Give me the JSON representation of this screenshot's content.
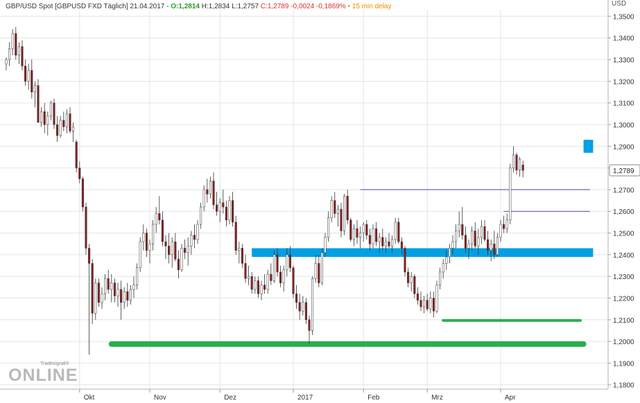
{
  "header": {
    "title": "GBP/USD Spot [GBPUSD FXD Täglich] 21.04.2017",
    "open": "O:1,2814",
    "high": "H:1,2834",
    "low": "L:1,2757",
    "close": "C:1,2789 -0,0024 -0,1869%",
    "delay": "15 min delay"
  },
  "colors": {
    "up": "#ffffff",
    "down": "#8b1f1f",
    "blue_zone": "#00a0e3",
    "green_line": "#27b04a",
    "resistance_line": "#4a4aa8",
    "open_text": "#2a9a2a",
    "close_text": "#d83030",
    "delay_text": "#f08c00"
  },
  "watermark": {
    "small": "Tradesignal®",
    "big": "ONLINE"
  },
  "chart_data": {
    "type": "candlestick",
    "currency": "USD",
    "last_value": "1,2789",
    "ylim": [
      1.178,
      1.353
    ],
    "yticks": [
      "1,1800",
      "1,1900",
      "1,2000",
      "1,2100",
      "1,2200",
      "1,2300",
      "1,2400",
      "1,2500",
      "1,2600",
      "1,2700",
      "1,2800",
      "1,2900",
      "1,3000",
      "1,3100",
      "1,3200",
      "1,3300",
      "1,3400",
      "1,3500"
    ],
    "xticks": [
      "Okt",
      "Nov",
      "Dez",
      "2017",
      "Feb",
      "Mrz",
      "Apr"
    ],
    "xtick_index": [
      23,
      45,
      67,
      90,
      112,
      132,
      155
    ],
    "grid": true,
    "candles": [
      [
        1.328,
        1.331,
        1.325,
        1.33
      ],
      [
        1.33,
        1.338,
        1.327,
        1.335
      ],
      [
        1.335,
        1.344,
        1.332,
        1.342
      ],
      [
        1.342,
        1.345,
        1.33,
        1.332
      ],
      [
        1.332,
        1.338,
        1.328,
        1.336
      ],
      [
        1.336,
        1.339,
        1.325,
        1.327
      ],
      [
        1.327,
        1.33,
        1.318,
        1.32
      ],
      [
        1.32,
        1.328,
        1.316,
        1.325
      ],
      [
        1.325,
        1.33,
        1.312,
        1.315
      ],
      [
        1.315,
        1.32,
        1.308,
        1.318
      ],
      [
        1.318,
        1.321,
        1.301,
        1.301
      ],
      [
        1.301,
        1.308,
        1.299,
        1.306
      ],
      [
        1.306,
        1.31,
        1.296,
        1.3
      ],
      [
        1.3,
        1.306,
        1.295,
        1.304
      ],
      [
        1.304,
        1.311,
        1.302,
        1.31
      ],
      [
        1.31,
        1.312,
        1.298,
        1.3
      ],
      [
        1.3,
        1.304,
        1.292,
        1.295
      ],
      [
        1.295,
        1.304,
        1.294,
        1.302
      ],
      [
        1.302,
        1.306,
        1.297,
        1.299
      ],
      [
        1.299,
        1.307,
        1.296,
        1.305
      ],
      [
        1.305,
        1.308,
        1.296,
        1.297
      ],
      [
        1.297,
        1.301,
        1.292,
        1.299
      ],
      [
        1.292,
        1.293,
        1.278,
        1.28
      ],
      [
        1.28,
        1.283,
        1.273,
        1.275
      ],
      [
        1.275,
        1.276,
        1.26,
        1.262
      ],
      [
        1.262,
        1.264,
        1.24,
        1.243
      ],
      [
        1.243,
        1.245,
        1.194,
        1.236
      ],
      [
        1.236,
        1.238,
        1.208,
        1.213
      ],
      [
        1.213,
        1.229,
        1.21,
        1.227
      ],
      [
        1.227,
        1.229,
        1.216,
        1.218
      ],
      [
        1.218,
        1.225,
        1.215,
        1.222
      ],
      [
        1.222,
        1.231,
        1.219,
        1.229
      ],
      [
        1.229,
        1.233,
        1.222,
        1.224
      ],
      [
        1.224,
        1.231,
        1.218,
        1.227
      ],
      [
        1.227,
        1.229,
        1.218,
        1.221
      ],
      [
        1.221,
        1.227,
        1.216,
        1.224
      ],
      [
        1.224,
        1.228,
        1.21,
        1.218
      ],
      [
        1.218,
        1.225,
        1.215,
        1.223
      ],
      [
        1.223,
        1.227,
        1.216,
        1.219
      ],
      [
        1.219,
        1.226,
        1.217,
        1.224
      ],
      [
        1.224,
        1.23,
        1.22,
        1.226
      ],
      [
        1.226,
        1.236,
        1.224,
        1.234
      ],
      [
        1.234,
        1.248,
        1.232,
        1.246
      ],
      [
        1.246,
        1.254,
        1.242,
        1.25
      ],
      [
        1.25,
        1.252,
        1.239,
        1.242
      ],
      [
        1.242,
        1.247,
        1.236,
        1.245
      ],
      [
        1.245,
        1.256,
        1.242,
        1.254
      ],
      [
        1.254,
        1.262,
        1.25,
        1.259
      ],
      [
        1.259,
        1.267,
        1.254,
        1.256
      ],
      [
        1.256,
        1.26,
        1.244,
        1.246
      ],
      [
        1.246,
        1.249,
        1.238,
        1.244
      ],
      [
        1.244,
        1.25,
        1.236,
        1.24
      ],
      [
        1.24,
        1.248,
        1.234,
        1.246
      ],
      [
        1.246,
        1.25,
        1.237,
        1.238
      ],
      [
        1.238,
        1.242,
        1.229,
        1.233
      ],
      [
        1.233,
        1.245,
        1.232,
        1.243
      ],
      [
        1.243,
        1.247,
        1.238,
        1.241
      ],
      [
        1.241,
        1.248,
        1.235,
        1.244
      ],
      [
        1.244,
        1.251,
        1.24,
        1.249
      ],
      [
        1.249,
        1.254,
        1.243,
        1.247
      ],
      [
        1.247,
        1.256,
        1.245,
        1.254
      ],
      [
        1.254,
        1.264,
        1.252,
        1.262
      ],
      [
        1.262,
        1.272,
        1.26,
        1.27
      ],
      [
        1.27,
        1.275,
        1.264,
        1.268
      ],
      [
        1.268,
        1.276,
        1.266,
        1.274
      ],
      [
        1.274,
        1.278,
        1.261,
        1.263
      ],
      [
        1.263,
        1.269,
        1.258,
        1.26
      ],
      [
        1.26,
        1.266,
        1.255,
        1.264
      ],
      [
        1.264,
        1.27,
        1.259,
        1.262
      ],
      [
        1.262,
        1.265,
        1.253,
        1.256
      ],
      [
        1.256,
        1.267,
        1.254,
        1.265
      ],
      [
        1.265,
        1.269,
        1.253,
        1.255
      ],
      [
        1.255,
        1.258,
        1.24,
        1.242
      ],
      [
        1.242,
        1.246,
        1.236,
        1.243
      ],
      [
        1.243,
        1.245,
        1.234,
        1.236
      ],
      [
        1.236,
        1.24,
        1.227,
        1.229
      ],
      [
        1.229,
        1.235,
        1.226,
        1.23
      ],
      [
        1.23,
        1.232,
        1.222,
        1.224
      ],
      [
        1.224,
        1.23,
        1.222,
        1.228
      ],
      [
        1.228,
        1.23,
        1.22,
        1.222
      ],
      [
        1.222,
        1.228,
        1.219,
        1.226
      ],
      [
        1.226,
        1.231,
        1.222,
        1.224
      ],
      [
        1.224,
        1.233,
        1.222,
        1.231
      ],
      [
        1.231,
        1.236,
        1.226,
        1.228
      ],
      [
        1.228,
        1.242,
        1.227,
        1.24
      ],
      [
        1.24,
        1.243,
        1.23,
        1.232
      ],
      [
        1.232,
        1.235,
        1.225,
        1.227
      ],
      [
        1.227,
        1.235,
        1.223,
        1.233
      ],
      [
        1.233,
        1.243,
        1.23,
        1.24
      ],
      [
        1.24,
        1.244,
        1.232,
        1.234
      ],
      [
        1.234,
        1.235,
        1.22,
        1.222
      ],
      [
        1.222,
        1.226,
        1.215,
        1.218
      ],
      [
        1.218,
        1.222,
        1.21,
        1.214
      ],
      [
        1.214,
        1.221,
        1.212,
        1.218
      ],
      [
        1.218,
        1.22,
        1.208,
        1.21
      ],
      [
        1.21,
        1.212,
        1.199,
        1.205
      ],
      [
        1.205,
        1.23,
        1.203,
        1.229
      ],
      [
        1.229,
        1.24,
        1.227,
        1.236
      ],
      [
        1.236,
        1.24,
        1.225,
        1.227
      ],
      [
        1.227,
        1.243,
        1.226,
        1.241
      ],
      [
        1.241,
        1.25,
        1.239,
        1.248
      ],
      [
        1.248,
        1.26,
        1.246,
        1.257
      ],
      [
        1.257,
        1.267,
        1.255,
        1.265
      ],
      [
        1.265,
        1.269,
        1.257,
        1.259
      ],
      [
        1.259,
        1.263,
        1.253,
        1.261
      ],
      [
        1.261,
        1.264,
        1.248,
        1.251
      ],
      [
        1.251,
        1.268,
        1.249,
        1.267
      ],
      [
        1.267,
        1.27,
        1.254,
        1.256
      ],
      [
        1.256,
        1.257,
        1.246,
        1.247
      ],
      [
        1.247,
        1.254,
        1.244,
        1.252
      ],
      [
        1.252,
        1.256,
        1.245,
        1.248
      ],
      [
        1.248,
        1.253,
        1.243,
        1.25
      ],
      [
        1.25,
        1.255,
        1.246,
        1.254
      ],
      [
        1.254,
        1.256,
        1.247,
        1.249
      ],
      [
        1.249,
        1.252,
        1.242,
        1.245
      ],
      [
        1.245,
        1.254,
        1.243,
        1.252
      ],
      [
        1.252,
        1.255,
        1.244,
        1.246
      ],
      [
        1.246,
        1.25,
        1.241,
        1.248
      ],
      [
        1.248,
        1.252,
        1.242,
        1.244
      ],
      [
        1.244,
        1.248,
        1.241,
        1.246
      ],
      [
        1.246,
        1.25,
        1.243,
        1.244
      ],
      [
        1.244,
        1.249,
        1.241,
        1.247
      ],
      [
        1.247,
        1.257,
        1.245,
        1.255
      ],
      [
        1.255,
        1.257,
        1.245,
        1.246
      ],
      [
        1.246,
        1.248,
        1.24,
        1.243
      ],
      [
        1.243,
        1.244,
        1.23,
        1.232
      ],
      [
        1.232,
        1.234,
        1.225,
        1.227
      ],
      [
        1.227,
        1.232,
        1.223,
        1.23
      ],
      [
        1.23,
        1.231,
        1.22,
        1.222
      ],
      [
        1.222,
        1.225,
        1.217,
        1.219
      ],
      [
        1.219,
        1.223,
        1.214,
        1.216
      ],
      [
        1.216,
        1.221,
        1.213,
        1.219
      ],
      [
        1.219,
        1.222,
        1.214,
        1.215
      ],
      [
        1.215,
        1.223,
        1.213,
        1.22
      ],
      [
        1.22,
        1.223,
        1.211,
        1.214
      ],
      [
        1.214,
        1.228,
        1.213,
        1.226
      ],
      [
        1.226,
        1.234,
        1.224,
        1.232
      ],
      [
        1.232,
        1.238,
        1.229,
        1.236
      ],
      [
        1.236,
        1.242,
        1.233,
        1.239
      ],
      [
        1.239,
        1.245,
        1.236,
        1.243
      ],
      [
        1.243,
        1.249,
        1.24,
        1.246
      ],
      [
        1.246,
        1.254,
        1.243,
        1.251
      ],
      [
        1.251,
        1.26,
        1.248,
        1.254
      ],
      [
        1.254,
        1.262,
        1.247,
        1.249
      ],
      [
        1.249,
        1.253,
        1.241,
        1.243
      ],
      [
        1.243,
        1.247,
        1.238,
        1.245
      ],
      [
        1.245,
        1.253,
        1.242,
        1.251
      ],
      [
        1.251,
        1.255,
        1.243,
        1.244
      ],
      [
        1.244,
        1.252,
        1.24,
        1.248
      ],
      [
        1.248,
        1.256,
        1.245,
        1.253
      ],
      [
        1.253,
        1.256,
        1.246,
        1.247
      ],
      [
        1.247,
        1.251,
        1.24,
        1.242
      ],
      [
        1.242,
        1.247,
        1.237,
        1.245
      ],
      [
        1.245,
        1.251,
        1.238,
        1.24
      ],
      [
        1.24,
        1.25,
        1.239,
        1.248
      ],
      [
        1.248,
        1.256,
        1.246,
        1.254
      ],
      [
        1.254,
        1.258,
        1.25,
        1.252
      ],
      [
        1.252,
        1.259,
        1.25,
        1.256
      ],
      [
        1.256,
        1.282,
        1.254,
        1.28
      ],
      [
        1.28,
        1.29,
        1.278,
        1.286
      ],
      [
        1.286,
        1.287,
        1.277,
        1.279
      ],
      [
        1.279,
        1.285,
        1.276,
        1.284
      ],
      [
        1.2814,
        1.2834,
        1.2757,
        1.2789
      ]
    ],
    "annotations": [
      {
        "type": "zone",
        "color": "blue",
        "from_index": 77,
        "to_index": 184,
        "y0": 1.239,
        "y1": 1.243
      },
      {
        "type": "zone",
        "color": "blue",
        "from_index": 181,
        "to_index": 184,
        "y0": 1.287,
        "y1": 1.293
      },
      {
        "type": "line",
        "color": "green",
        "from_index": 33,
        "to_index": 181,
        "y": 1.1988
      },
      {
        "type": "line",
        "color": "green",
        "from_index": 137,
        "to_index": 180,
        "y": 1.2097
      },
      {
        "type": "line",
        "color": "resistance",
        "from_index": 111,
        "to_index": 183,
        "y": 1.27
      },
      {
        "type": "line",
        "color": "resistance",
        "from_index": 156,
        "to_index": 183,
        "y": 1.26
      }
    ]
  }
}
